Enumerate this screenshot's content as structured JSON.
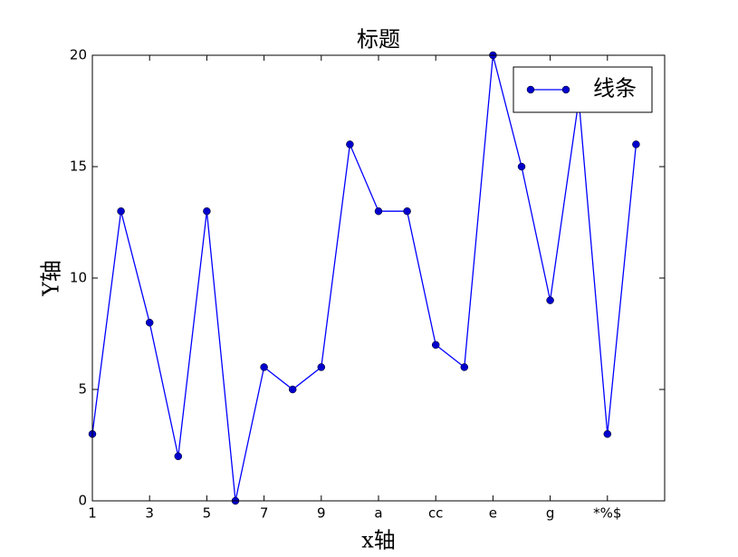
{
  "chart_data": {
    "type": "line",
    "title": "标题",
    "x_label": "x轴",
    "y_label": "Y轴",
    "categories": [
      "1",
      null,
      "3",
      null,
      "5",
      null,
      "7",
      null,
      "9",
      null,
      "a",
      null,
      "cc",
      null,
      "e",
      null,
      "g",
      null,
      "*%$",
      null
    ],
    "series": [
      {
        "name": "线条",
        "color": "#0000ff",
        "marker_color": "#0000cc",
        "values": [
          3,
          13,
          8,
          2,
          13,
          0,
          6,
          5,
          6,
          16,
          13,
          13,
          7,
          6,
          20,
          15,
          9,
          18,
          3,
          16
        ]
      }
    ],
    "ylim": [
      0,
      20
    ],
    "yticks": [
      0,
      5,
      10,
      15,
      20
    ],
    "legend": "upper right",
    "grid": false
  }
}
